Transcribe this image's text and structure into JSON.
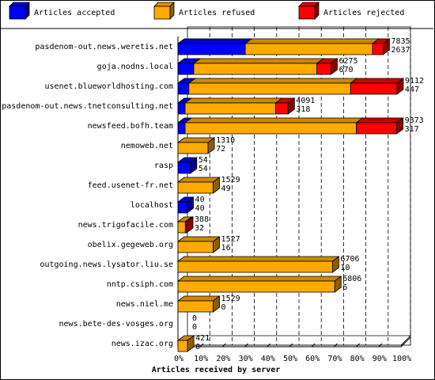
{
  "chart_data": {
    "type": "bar",
    "stacked": true,
    "orientation": "horizontal",
    "xlabel": "Articles received by server",
    "xticks": [
      "0%",
      "10%",
      "20%",
      "30%",
      "40%",
      "50%",
      "60%",
      "70%",
      "80%",
      "90%",
      "100%"
    ],
    "xlim": [
      0,
      100
    ],
    "legend_position": "top",
    "grid": "vertical dashed",
    "series": [
      {
        "name": "Articles accepted",
        "color": "#0000ff"
      },
      {
        "name": "Articles refused",
        "color": "#ffaa00"
      },
      {
        "name": "Articles rejected",
        "color": "#ff0000"
      }
    ],
    "rows": [
      {
        "server": "pasdenom-out.news.weretis.net",
        "accepted_pct": 30.2,
        "refused_pct": 57.0,
        "rejected_pct": 4.8,
        "label1": "7835",
        "label2": "2637"
      },
      {
        "server": "goja.nodns.local",
        "accepted_pct": 7.1,
        "refused_pct": 55.2,
        "rejected_pct": 6.3,
        "label1": "6275",
        "label2": "670"
      },
      {
        "server": "usenet.blueworldhosting.com",
        "accepted_pct": 4.9,
        "refused_pct": 72.5,
        "rejected_pct": 20.8,
        "label1": "9112",
        "label2": "447"
      },
      {
        "server": "pasdenom-out.news.tnetconsulting.net",
        "accepted_pct": 3.2,
        "refused_pct": 40.6,
        "rejected_pct": 5.6,
        "label1": "4091",
        "label2": "318"
      },
      {
        "server": "newsfeed.bofh.team",
        "accepted_pct": 3.2,
        "refused_pct": 76.8,
        "rejected_pct": 18.1,
        "label1": "9373",
        "label2": "317"
      },
      {
        "server": "nemoweb.net",
        "accepted_pct": 0,
        "refused_pct": 13.5,
        "rejected_pct": 0,
        "label1": "1310",
        "label2": "72"
      },
      {
        "server": "rasp",
        "accepted_pct": 5.6,
        "refused_pct": 0,
        "rejected_pct": 0,
        "label1": "54",
        "label2": "54"
      },
      {
        "server": "feed.usenet-fr.net",
        "accepted_pct": 0,
        "refused_pct": 15.8,
        "rejected_pct": 0,
        "label1": "1529",
        "label2": "49"
      },
      {
        "server": "localhost",
        "accepted_pct": 4.1,
        "refused_pct": 0,
        "rejected_pct": 0,
        "label1": "40",
        "label2": "40"
      },
      {
        "server": "news.trigofacile.com",
        "accepted_pct": 0,
        "refused_pct": 3.3,
        "rejected_pct": 0.6,
        "label1": "388",
        "label2": "32"
      },
      {
        "server": "obelix.gegeweb.org",
        "accepted_pct": 0,
        "refused_pct": 15.8,
        "rejected_pct": 0,
        "label1": "1527",
        "label2": "16"
      },
      {
        "server": "outgoing.news.lysator.liu.se",
        "accepted_pct": 0,
        "refused_pct": 69.3,
        "rejected_pct": 0,
        "label1": "6706",
        "label2": "10"
      },
      {
        "server": "nntp.csiph.com",
        "accepted_pct": 0,
        "refused_pct": 70.3,
        "rejected_pct": 0,
        "label1": "6806",
        "label2": "6"
      },
      {
        "server": "news.niel.me",
        "accepted_pct": 0,
        "refused_pct": 15.8,
        "rejected_pct": 0,
        "label1": "1529",
        "label2": "0"
      },
      {
        "server": "news.bete-des-vosges.org",
        "accepted_pct": 0,
        "refused_pct": 0,
        "rejected_pct": 0,
        "label1": "0",
        "label2": "0"
      },
      {
        "server": "news.izac.org",
        "accepted_pct": 0,
        "refused_pct": 4.3,
        "rejected_pct": 0,
        "label1": "421",
        "label2": "0"
      }
    ]
  }
}
